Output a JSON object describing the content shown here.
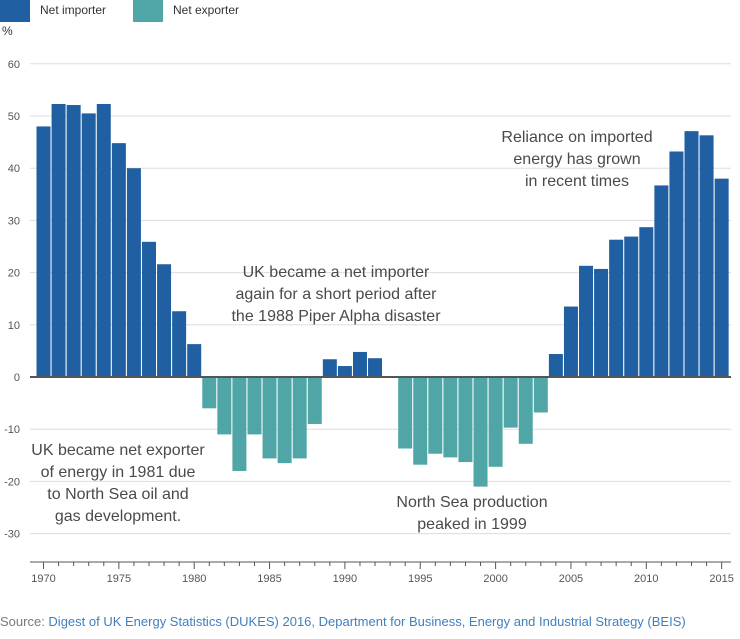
{
  "chart_data": {
    "type": "bar",
    "unit_label": "%",
    "x": [
      1970,
      1971,
      1972,
      1973,
      1974,
      1975,
      1976,
      1977,
      1978,
      1979,
      1980,
      1981,
      1982,
      1983,
      1984,
      1985,
      1986,
      1987,
      1988,
      1989,
      1990,
      1991,
      1992,
      1993,
      1994,
      1995,
      1996,
      1997,
      1998,
      1999,
      2000,
      2001,
      2002,
      2003,
      2004,
      2005,
      2006,
      2007,
      2008,
      2009,
      2010,
      2011,
      2012,
      2013,
      2014,
      2015
    ],
    "values": [
      48,
      52.3,
      52.1,
      50.5,
      52.3,
      44.8,
      40,
      25.9,
      21.6,
      12.6,
      6.3,
      -6,
      -11,
      -18,
      -11,
      -15.6,
      -16.5,
      -15.6,
      -9,
      3.4,
      2.1,
      4.8,
      3.6,
      0,
      -13.7,
      -16.8,
      -14.7,
      -15.4,
      -16.3,
      -21,
      -17.2,
      -9.7,
      -12.8,
      -6.8,
      4.4,
      13.5,
      21.3,
      20.7,
      26.3,
      26.9,
      28.7,
      36.7,
      43.2,
      47.1,
      46.3,
      38
    ],
    "series": [
      {
        "name": "Net importer",
        "color": "#1f5fa2"
      },
      {
        "name": "Net exporter",
        "color": "#50a6a6"
      }
    ],
    "ylim": [
      -35,
      63
    ],
    "yticks": [
      60,
      50,
      40,
      30,
      20,
      10,
      0,
      -10,
      -20,
      -30
    ],
    "xticks": [
      1970,
      1975,
      1980,
      1985,
      1990,
      1995,
      2000,
      2005,
      2010,
      2015
    ],
    "grid": true,
    "annotations": [
      {
        "id": "export-1981",
        "lines": [
          "UK became net exporter",
          "of energy in 1981 due",
          "to North Sea oil and",
          "gas development."
        ]
      },
      {
        "id": "piper-alpha",
        "lines": [
          "UK became a net importer",
          "again for a short period after",
          "the 1988 Piper Alpha disaster"
        ]
      },
      {
        "id": "peak-1999",
        "lines": [
          "North Sea production",
          "peaked in 1999"
        ]
      },
      {
        "id": "recent-imports",
        "lines": [
          "Reliance on imported",
          "energy has grown",
          "in recent times"
        ]
      }
    ]
  },
  "source": {
    "prefix": "Source: ",
    "text": "Digest of UK Energy Statistics (DUKES) 2016, Department for Business, Energy and Industrial Strategy (BEIS)"
  }
}
